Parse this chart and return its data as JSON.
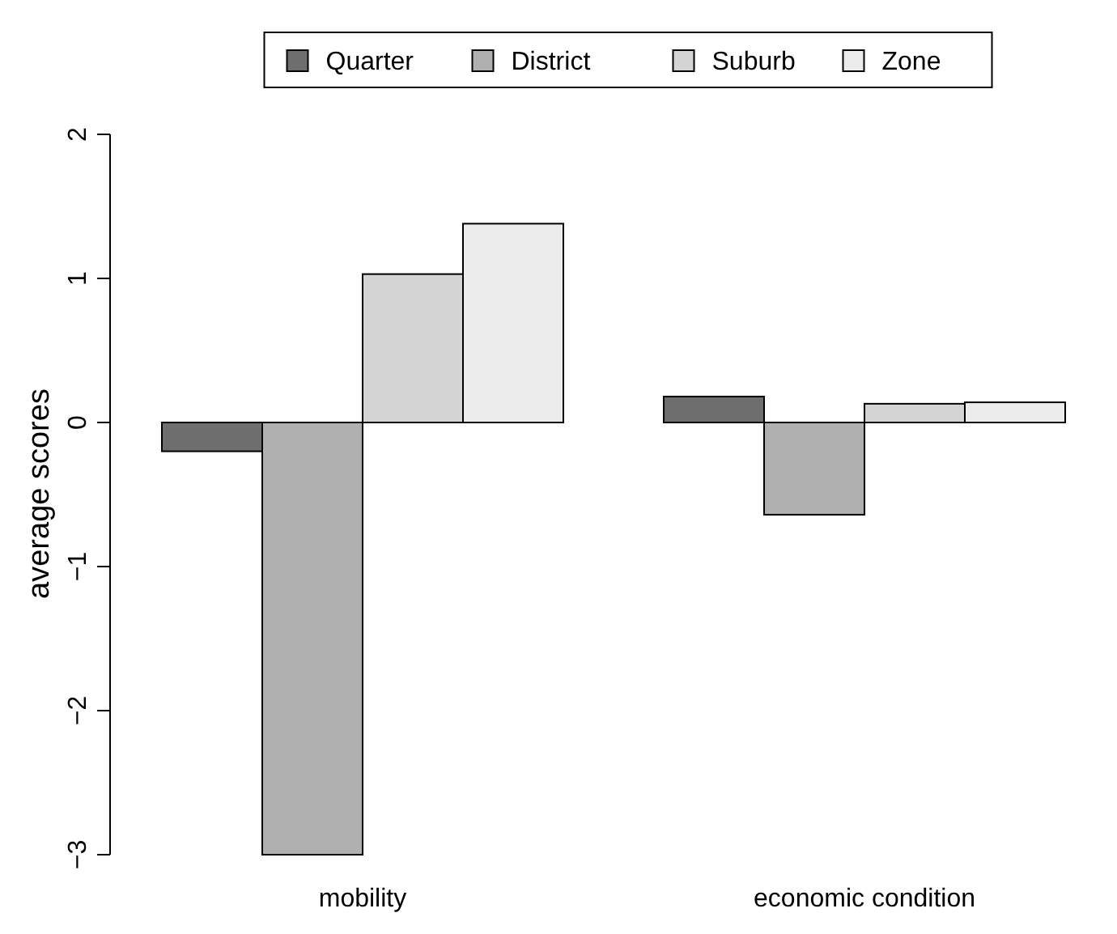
{
  "chart_data": {
    "type": "bar",
    "ylabel": "average scores",
    "categories": [
      "mobility",
      "economic condition"
    ],
    "series": [
      {
        "name": "Quarter",
        "color": "#6e6e6e",
        "values": [
          -0.2,
          0.18
        ]
      },
      {
        "name": "District",
        "color": "#b0b0b0",
        "values": [
          -3,
          -0.64
        ]
      },
      {
        "name": "Suburb",
        "color": "#d4d4d4",
        "values": [
          1.03,
          0.13
        ]
      },
      {
        "name": "Zone",
        "color": "#ececec",
        "values": [
          1.38,
          0.14
        ]
      }
    ],
    "ylim": [
      -3,
      2
    ],
    "yticks": [
      -3,
      -2,
      -1,
      0,
      1,
      2
    ],
    "grid": false,
    "legend": "top"
  }
}
